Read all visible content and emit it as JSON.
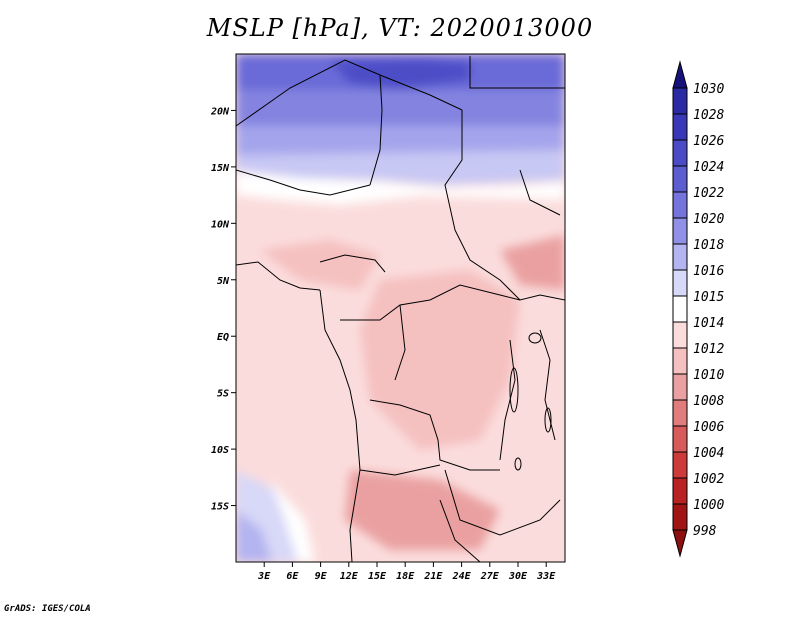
{
  "title": "MSLP [hPa], VT: 2020013000",
  "credit": "GrADS: IGES/COLA",
  "map": {
    "lon_range": [
      0,
      35
    ],
    "lat_range": [
      -20,
      25
    ],
    "lat_ticks": [
      {
        "value": 20,
        "label": "20N"
      },
      {
        "value": 15,
        "label": "15N"
      },
      {
        "value": 10,
        "label": "10N"
      },
      {
        "value": 5,
        "label": "5N"
      },
      {
        "value": 0,
        "label": "EQ"
      },
      {
        "value": -5,
        "label": "5S"
      },
      {
        "value": -10,
        "label": "10S"
      },
      {
        "value": -15,
        "label": "15S"
      }
    ],
    "lon_ticks": [
      {
        "value": 3,
        "label": "3E"
      },
      {
        "value": 6,
        "label": "6E"
      },
      {
        "value": 9,
        "label": "9E"
      },
      {
        "value": 12,
        "label": "12E"
      },
      {
        "value": 15,
        "label": "15E"
      },
      {
        "value": 18,
        "label": "18E"
      },
      {
        "value": 21,
        "label": "21E"
      },
      {
        "value": 24,
        "label": "24E"
      },
      {
        "value": 27,
        "label": "27E"
      },
      {
        "value": 30,
        "label": "30E"
      },
      {
        "value": 33,
        "label": "33E"
      }
    ]
  },
  "colorbar": {
    "levels": [
      {
        "label": "1030",
        "color": "#1f1b8a"
      },
      {
        "label": "1028",
        "color": "#2a2aa5"
      },
      {
        "label": "1026",
        "color": "#3838b8"
      },
      {
        "label": "1024",
        "color": "#4b4bc6"
      },
      {
        "label": "1022",
        "color": "#5d5dd2"
      },
      {
        "label": "1020",
        "color": "#7474dc"
      },
      {
        "label": "1018",
        "color": "#9090e6"
      },
      {
        "label": "1016",
        "color": "#b4b4f0"
      },
      {
        "label": "1015",
        "color": "#d8d8f8"
      },
      {
        "label": "1014",
        "color": "#ffffff"
      },
      {
        "label": "1012",
        "color": "#fbdcdc"
      },
      {
        "label": "1010",
        "color": "#f5c0c0"
      },
      {
        "label": "1008",
        "color": "#eaa0a0"
      },
      {
        "label": "1006",
        "color": "#e07c7c"
      },
      {
        "label": "1004",
        "color": "#d85a5a"
      },
      {
        "label": "1002",
        "color": "#cc3a3a"
      },
      {
        "label": "1000",
        "color": "#b82222"
      },
      {
        "label": "998",
        "color": "#a01414"
      }
    ],
    "top_arrow_color": "#16127a",
    "bottom_arrow_color": "#8c1010"
  }
}
